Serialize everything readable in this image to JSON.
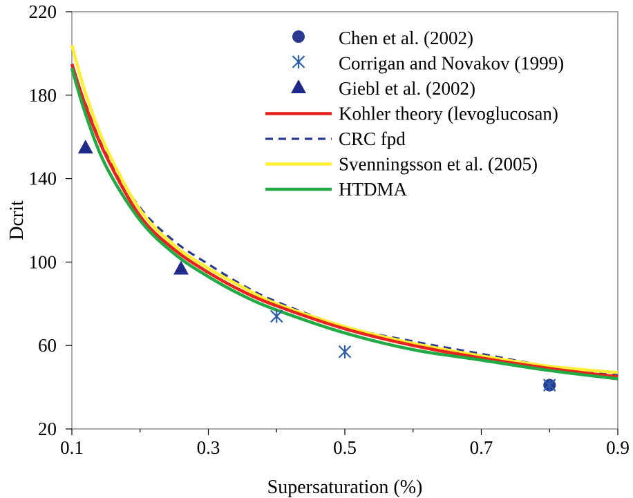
{
  "chart_data": {
    "type": "line",
    "title": "",
    "xlabel": "Supersaturation (%)",
    "ylabel": "Dcrit",
    "xlim": [
      0.1,
      0.9
    ],
    "ylim": [
      20,
      220
    ],
    "x_ticks": [
      0.1,
      0.3,
      0.5,
      0.7,
      0.9
    ],
    "x_tick_labels": [
      "0.1",
      "0.3",
      "0.5",
      "0.7",
      "0.9"
    ],
    "y_ticks": [
      20,
      60,
      100,
      140,
      180,
      220
    ],
    "y_tick_labels": [
      "20",
      "60",
      "100",
      "140",
      "180",
      "220"
    ],
    "minor_x_ticks": [
      0.2,
      0.4,
      0.6,
      0.8
    ],
    "grid": false,
    "legend_position": "top-right",
    "series": [
      {
        "name": "Chen et al. (2002)",
        "kind": "scatter",
        "marker": "circle",
        "color": "#2b3990",
        "points": [
          [
            0.8,
            41
          ]
        ]
      },
      {
        "name": "Corrigan and Novakov (1999)",
        "kind": "scatter",
        "marker": "asterisk",
        "color": "#2b5ea8",
        "points": [
          [
            0.4,
            74
          ],
          [
            0.5,
            57
          ],
          [
            0.8,
            41
          ]
        ]
      },
      {
        "name": "Giebl et al. (2002)",
        "kind": "scatter",
        "marker": "triangle",
        "color": "#1f2a8a",
        "points": [
          [
            0.12,
            155
          ],
          [
            0.26,
            97
          ]
        ]
      },
      {
        "name": "Kohler theory (levoglucosan)",
        "kind": "line",
        "style": "solid",
        "color": "#e8221c",
        "points": [
          [
            0.1,
            195
          ],
          [
            0.12,
            175
          ],
          [
            0.15,
            151
          ],
          [
            0.2,
            122
          ],
          [
            0.25,
            106
          ],
          [
            0.3,
            95
          ],
          [
            0.35,
            86
          ],
          [
            0.4,
            79
          ],
          [
            0.5,
            68
          ],
          [
            0.6,
            60
          ],
          [
            0.7,
            54
          ],
          [
            0.8,
            49
          ],
          [
            0.9,
            45
          ]
        ]
      },
      {
        "name": "CRC fpd",
        "kind": "line",
        "style": "dashed",
        "color": "#2b3990",
        "points": [
          [
            0.1,
            194
          ],
          [
            0.12,
            176
          ],
          [
            0.15,
            152
          ],
          [
            0.2,
            126
          ],
          [
            0.25,
            110
          ],
          [
            0.3,
            99
          ],
          [
            0.35,
            89
          ],
          [
            0.4,
            81
          ],
          [
            0.5,
            69
          ],
          [
            0.6,
            62
          ],
          [
            0.7,
            56
          ],
          [
            0.8,
            50
          ],
          [
            0.9,
            46
          ]
        ]
      },
      {
        "name": "Svenningsson et al. (2005)",
        "kind": "line",
        "style": "solid",
        "color": "#ffee33",
        "points": [
          [
            0.1,
            204
          ],
          [
            0.12,
            181
          ],
          [
            0.15,
            155
          ],
          [
            0.2,
            125
          ],
          [
            0.25,
            108
          ],
          [
            0.3,
            97
          ],
          [
            0.35,
            88
          ],
          [
            0.4,
            80
          ],
          [
            0.5,
            69
          ],
          [
            0.6,
            61
          ],
          [
            0.7,
            55
          ],
          [
            0.8,
            50
          ],
          [
            0.9,
            47
          ]
        ]
      },
      {
        "name": "HTDMA",
        "kind": "line",
        "style": "solid",
        "color": "#22aa44",
        "points": [
          [
            0.1,
            193
          ],
          [
            0.12,
            171
          ],
          [
            0.15,
            146
          ],
          [
            0.2,
            120
          ],
          [
            0.25,
            104
          ],
          [
            0.3,
            93
          ],
          [
            0.35,
            84
          ],
          [
            0.4,
            77
          ],
          [
            0.5,
            66
          ],
          [
            0.6,
            58
          ],
          [
            0.7,
            53
          ],
          [
            0.8,
            48
          ],
          [
            0.9,
            44
          ]
        ]
      }
    ]
  }
}
